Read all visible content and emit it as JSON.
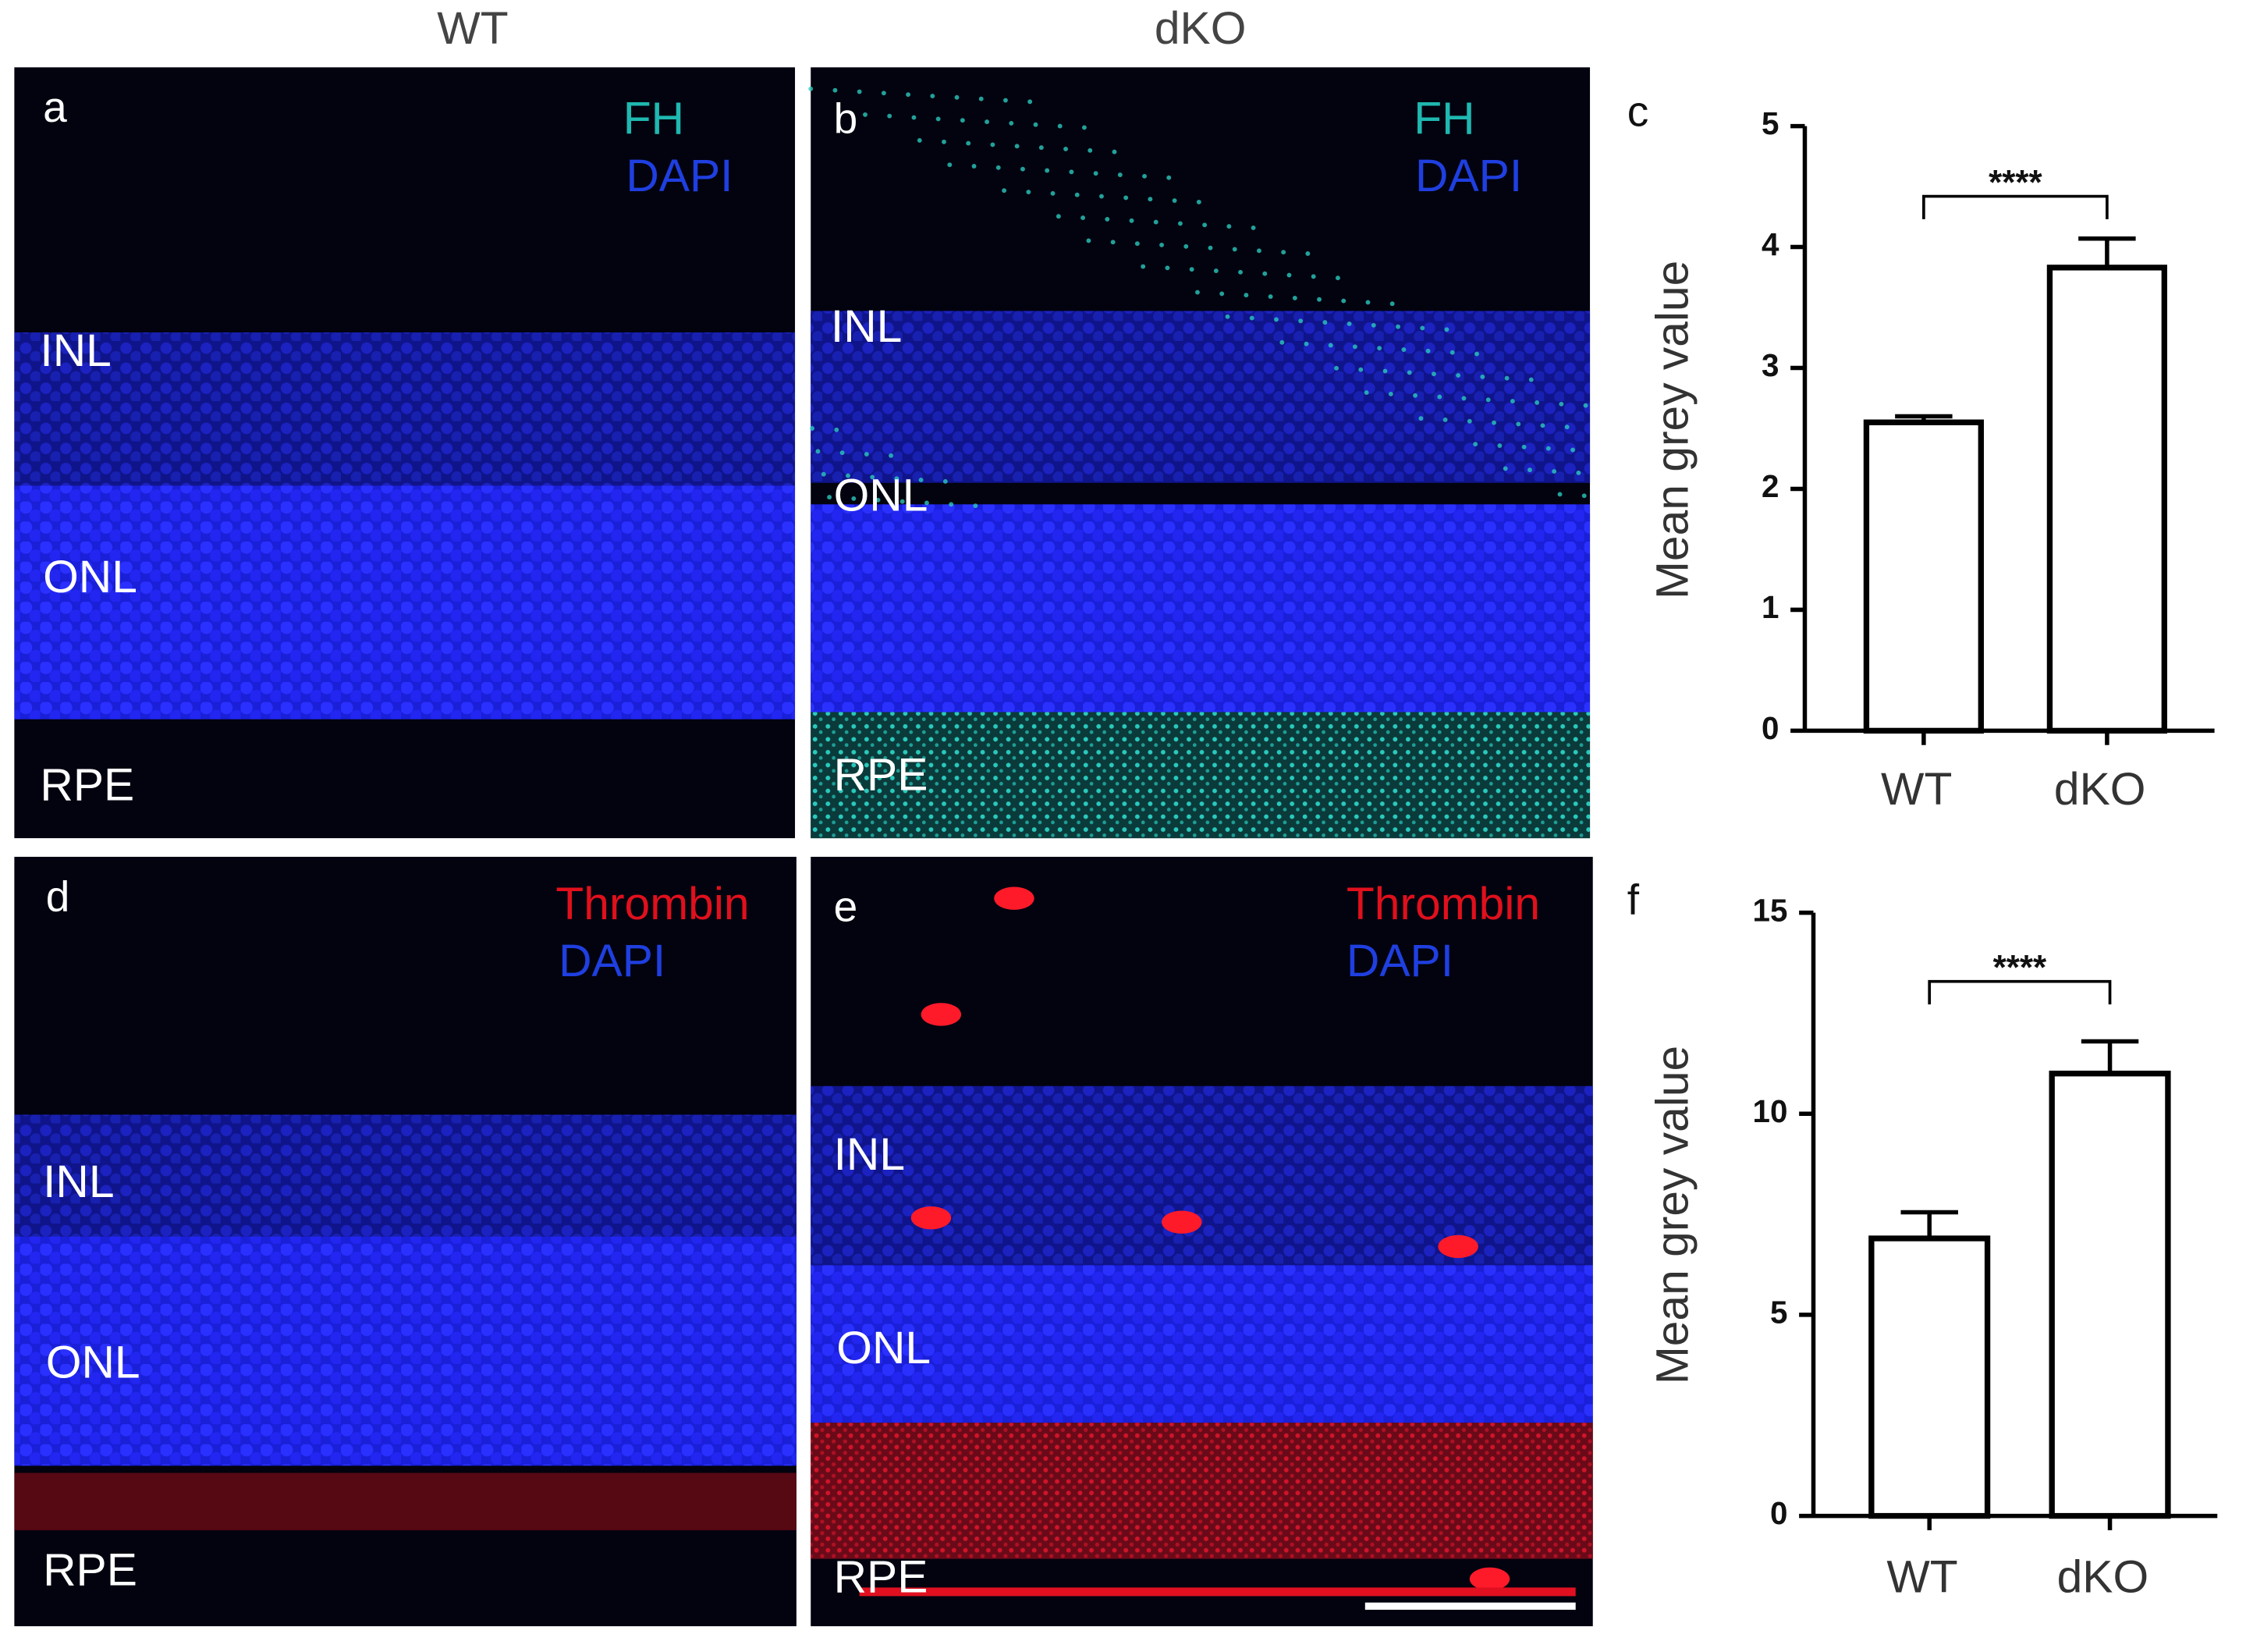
{
  "columns": [
    "WT",
    "dKO"
  ],
  "panels": [
    {
      "label": "a",
      "stains": [
        {
          "name": "FH",
          "color": "#1fb8b0"
        },
        {
          "name": "DAPI",
          "color": "#1f3fe0"
        }
      ],
      "layers": [
        "INL",
        "ONL",
        "RPE"
      ]
    },
    {
      "label": "b",
      "stains": [
        {
          "name": "FH",
          "color": "#1fb8b0"
        },
        {
          "name": "DAPI",
          "color": "#1f3fe0"
        }
      ],
      "layers": [
        "INL",
        "ONL",
        "RPE"
      ]
    },
    {
      "label": "d",
      "stains": [
        {
          "name": "Thrombin",
          "color": "#e0101c"
        },
        {
          "name": "DAPI",
          "color": "#1f3fe0"
        }
      ],
      "layers": [
        "INL",
        "ONL",
        "RPE"
      ]
    },
    {
      "label": "e",
      "stains": [
        {
          "name": "Thrombin",
          "color": "#e0101c"
        },
        {
          "name": "DAPI",
          "color": "#1f3fe0"
        }
      ],
      "layers": [
        "INL",
        "ONL",
        "RPE"
      ]
    }
  ],
  "chart_data": [
    {
      "type": "bar",
      "panel": "c",
      "y_label": "Mean grey value",
      "categories": [
        "WT",
        "dKO"
      ],
      "values": [
        2.55,
        3.83
      ],
      "errors": [
        0.05,
        0.24
      ],
      "color": "#ffffff",
      "ylim": [
        0,
        5
      ],
      "yticks": [
        0,
        1,
        2,
        3,
        4,
        5
      ],
      "annotation": "****"
    },
    {
      "type": "bar",
      "panel": "f",
      "y_label": "Mean grey value",
      "categories": [
        "WT",
        "dKO"
      ],
      "values": [
        6.9,
        11.0
      ],
      "errors": [
        0.65,
        0.8
      ],
      "color": "#ffffff",
      "ylim": [
        0,
        15
      ],
      "yticks": [
        0,
        5,
        10,
        15
      ],
      "annotation": "****"
    }
  ]
}
